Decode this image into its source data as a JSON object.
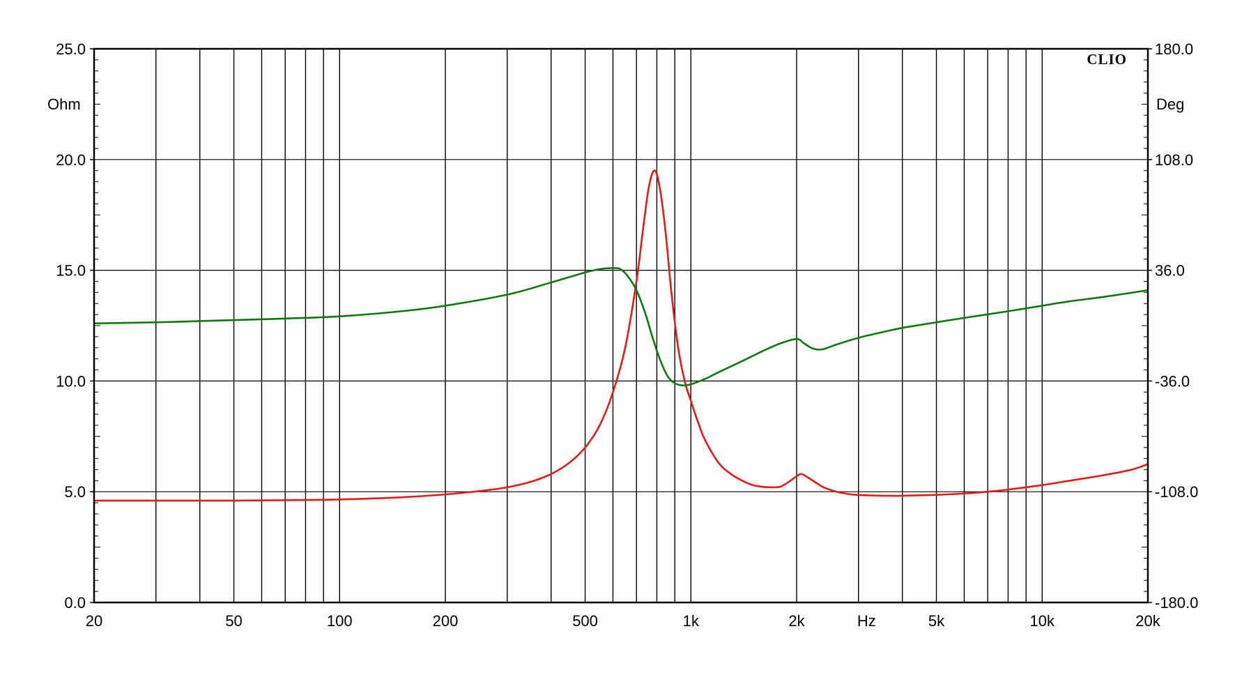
{
  "chart_data": {
    "type": "line",
    "brand": "CLIO",
    "x_scale": "log",
    "xlim": [
      20,
      20000
    ],
    "x_tick_labels": [
      {
        "value": 20,
        "label": "20"
      },
      {
        "value": 50,
        "label": "50"
      },
      {
        "value": 100,
        "label": "100"
      },
      {
        "value": 200,
        "label": "200"
      },
      {
        "value": 500,
        "label": "500"
      },
      {
        "value": 1000,
        "label": "1k"
      },
      {
        "value": 2000,
        "label": "2k"
      },
      {
        "value": 5000,
        "label": "5k"
      },
      {
        "value": 10000,
        "label": "10k"
      },
      {
        "value": 20000,
        "label": "20k"
      }
    ],
    "xlabel": "Hz",
    "xlabel_between": [
      2000,
      5000
    ],
    "ylabel_left": "Ohm",
    "ylim_left": [
      0,
      25
    ],
    "y_ticks_left": [
      {
        "value": 0,
        "label": "0.0"
      },
      {
        "value": 5,
        "label": "5.0"
      },
      {
        "value": 10,
        "label": "10.0"
      },
      {
        "value": 15,
        "label": "15.0"
      },
      {
        "value": 20,
        "label": "20.0"
      },
      {
        "value": 25,
        "label": "25.0"
      }
    ],
    "ylabel_right": "Deg",
    "ylim_right": [
      -180,
      180
    ],
    "y_ticks_right": [
      {
        "value": -180,
        "label": "-180.0"
      },
      {
        "value": -108,
        "label": "-108.0"
      },
      {
        "value": -36,
        "label": "-36.0"
      },
      {
        "value": 36,
        "label": "36.0"
      },
      {
        "value": 108,
        "label": "108.0"
      },
      {
        "value": 180,
        "label": "180.0"
      }
    ],
    "grid": true,
    "series": [
      {
        "axis": "left",
        "color": "#e31a1c",
        "x": [
          20,
          30,
          50,
          70,
          100,
          150,
          200,
          250,
          300,
          350,
          400,
          450,
          500,
          550,
          600,
          650,
          700,
          730,
          760,
          790,
          820,
          850,
          880,
          920,
          960,
          1000,
          1050,
          1100,
          1200,
          1300,
          1400,
          1500,
          1600,
          1700,
          1800,
          1900,
          2000,
          2050,
          2100,
          2200,
          2300,
          2400,
          2600,
          2800,
          3000,
          3500,
          4000,
          5000,
          6000,
          7000,
          8000,
          10000,
          12000,
          15000,
          18000,
          20000
        ],
        "values": [
          4.6,
          4.6,
          4.6,
          4.62,
          4.65,
          4.75,
          4.88,
          5.03,
          5.2,
          5.45,
          5.8,
          6.3,
          7.0,
          8.0,
          9.5,
          11.5,
          14.5,
          16.8,
          18.8,
          19.5,
          18.5,
          16.5,
          14.0,
          11.5,
          10.0,
          9.1,
          8.1,
          7.3,
          6.3,
          5.8,
          5.5,
          5.3,
          5.22,
          5.2,
          5.23,
          5.45,
          5.7,
          5.8,
          5.75,
          5.55,
          5.35,
          5.18,
          5.0,
          4.9,
          4.85,
          4.82,
          4.82,
          4.86,
          4.92,
          5.0,
          5.1,
          5.3,
          5.5,
          5.75,
          6.0,
          6.25
        ]
      },
      {
        "axis": "left",
        "color": "#117711",
        "x": [
          20,
          30,
          50,
          70,
          100,
          150,
          200,
          300,
          400,
          500,
          550,
          600,
          630,
          660,
          700,
          740,
          780,
          820,
          860,
          900,
          950,
          1000,
          1100,
          1200,
          1400,
          1600,
          1800,
          2000,
          2100,
          2200,
          2300,
          2400,
          2600,
          3000,
          3500,
          4000,
          5000,
          6000,
          8000,
          10000,
          12000,
          15000,
          20000
        ],
        "values": [
          12.6,
          12.65,
          12.75,
          12.82,
          12.92,
          13.15,
          13.4,
          13.9,
          14.45,
          14.9,
          15.05,
          15.1,
          15.05,
          14.75,
          14.1,
          13.1,
          11.9,
          10.9,
          10.2,
          9.9,
          9.8,
          9.85,
          10.1,
          10.4,
          10.9,
          11.35,
          11.7,
          11.9,
          11.7,
          11.5,
          11.42,
          11.45,
          11.65,
          11.95,
          12.2,
          12.4,
          12.65,
          12.85,
          13.15,
          13.4,
          13.6,
          13.8,
          14.1
        ]
      }
    ]
  }
}
